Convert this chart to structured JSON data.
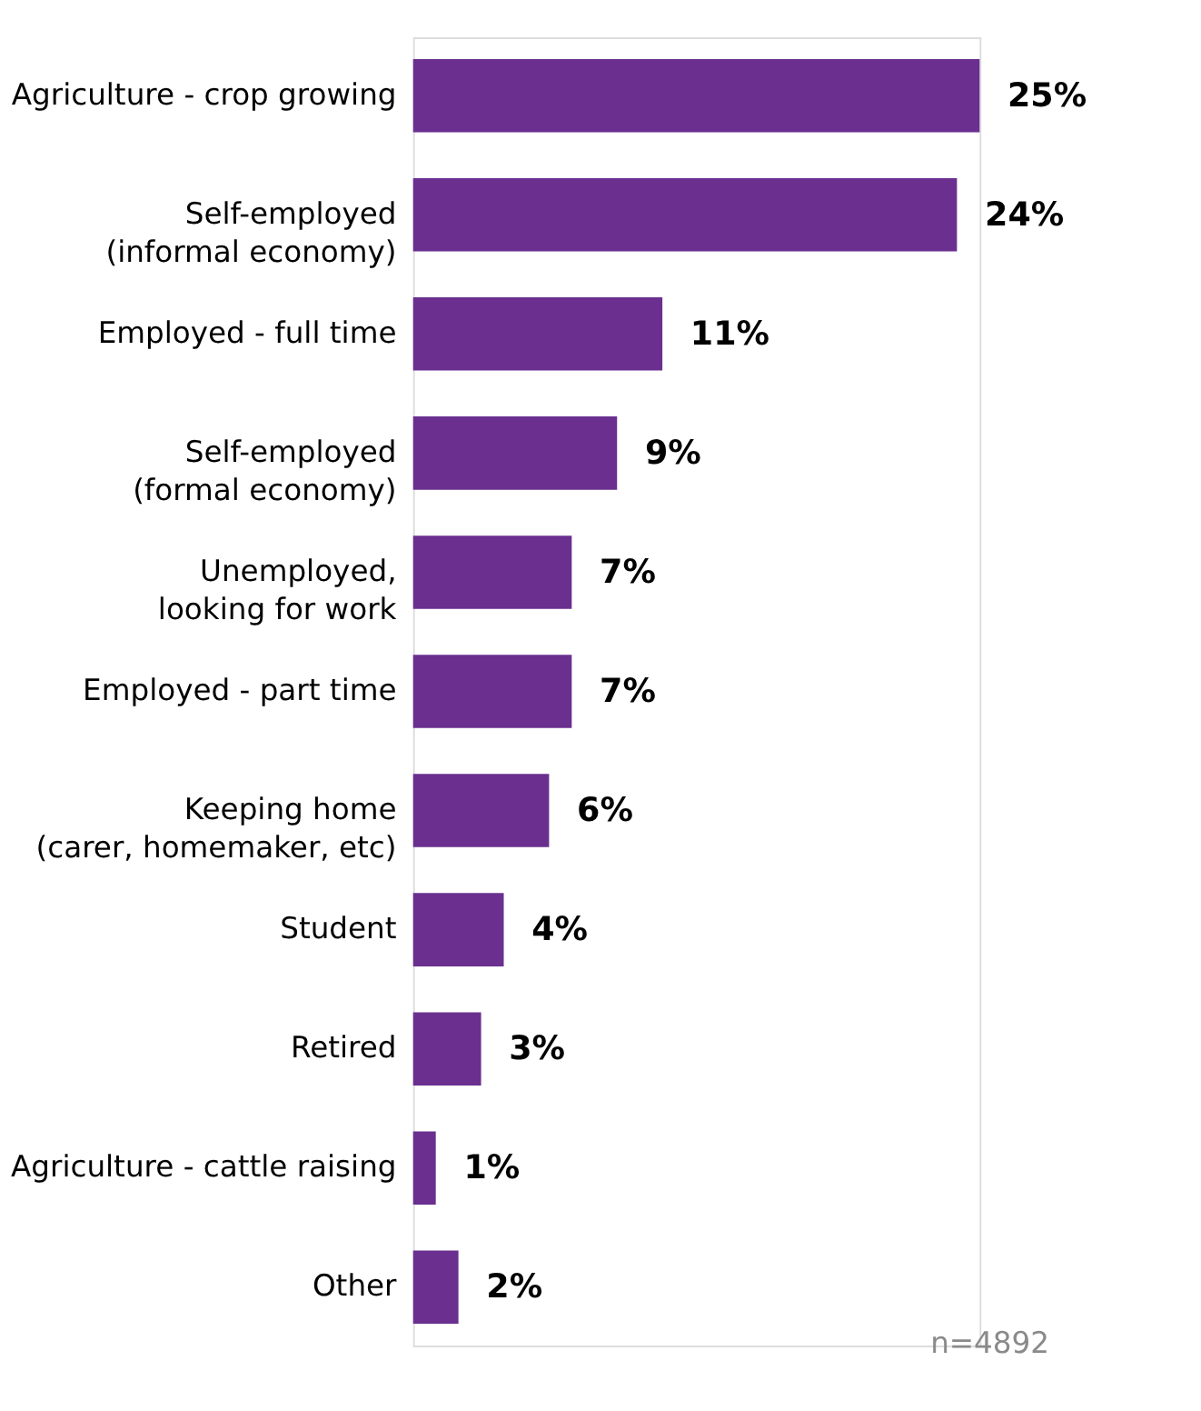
{
  "chart_data": {
    "type": "bar",
    "orientation": "horizontal",
    "categories": [
      "Agriculture - crop growing",
      "Self-employed\n(informal economy)",
      "Employed - full time",
      "Self-employed\n(formal economy)",
      "Unemployed,\nlooking for work",
      "Employed - part time",
      "Keeping home\n(carer, homemaker, etc)",
      "Student",
      "Retired",
      "Agriculture - cattle raising",
      "Other"
    ],
    "values": [
      25,
      24,
      11,
      9,
      7,
      7,
      6,
      4,
      3,
      1,
      2
    ],
    "value_labels": [
      "25%",
      "24%",
      "11%",
      "9%",
      "7%",
      "7%",
      "6%",
      "4%",
      "3%",
      "1%",
      "2%"
    ],
    "color": "#6a2f8f",
    "annotations": [
      "n=4892"
    ]
  }
}
